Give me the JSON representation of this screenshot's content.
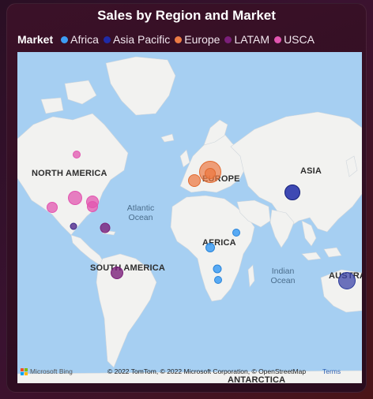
{
  "title": "Sales by Region and Market",
  "legend": {
    "title": "Market",
    "items": [
      {
        "label": "Africa",
        "color": "#3d9df5"
      },
      {
        "label": "Asia Pacific",
        "color": "#1f2ba8"
      },
      {
        "label": "Europe",
        "color": "#ec7b45"
      },
      {
        "label": "LATAM",
        "color": "#7b1f7a"
      },
      {
        "label": "USCA",
        "color": "#e255b0"
      }
    ]
  },
  "map_labels": {
    "north_america": "NORTH AMERICA",
    "south_america": "SOUTH AMERICA",
    "europe": "EUROPE",
    "africa": "AFRICA",
    "asia": "ASIA",
    "australia": "AUSTRA",
    "antarctica": "ANTARCTICA",
    "atlantic": "Atlantic Ocean",
    "indian": "Indian Ocean"
  },
  "footer": {
    "provider": "Microsoft Bing",
    "copyright": "© 2022 TomTom, © 2022 Microsoft Corporation, © OpenStreetMap",
    "terms": "Terms"
  }
}
